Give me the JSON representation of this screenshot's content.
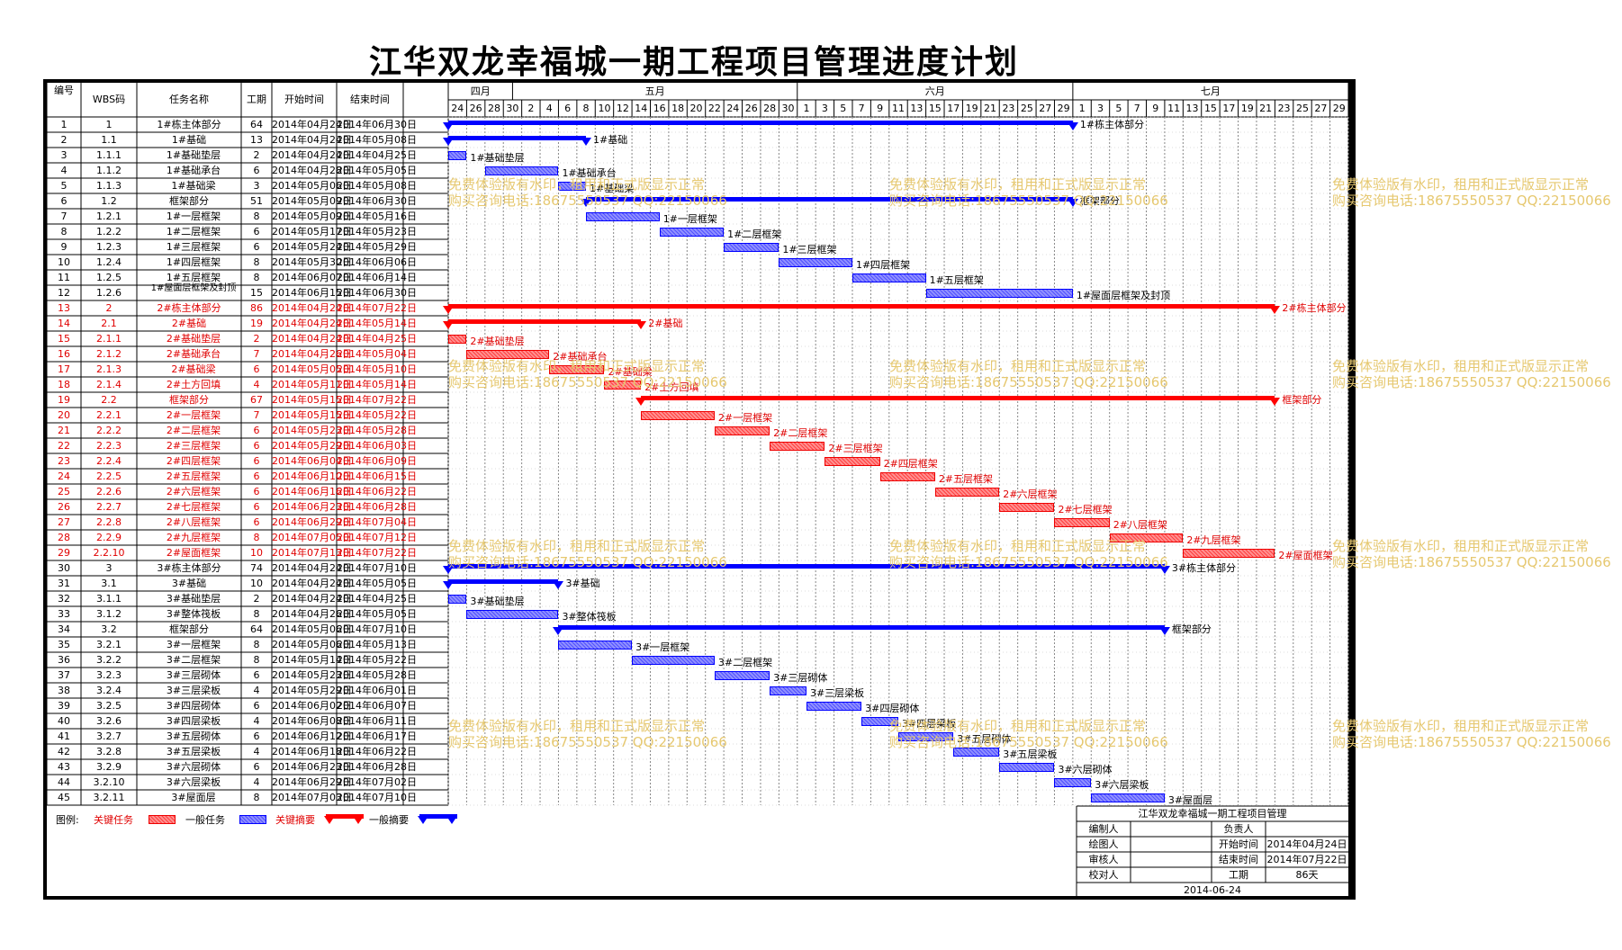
{
  "title": "江华双龙幸福城一期工程项目管理进度计划",
  "headers": {
    "no": "编号",
    "wbs": "WBS码",
    "name": "任务名称",
    "dur": "工期",
    "start": "开始时间",
    "end": "结束时间"
  },
  "months": [
    "四月",
    "五月",
    "六月",
    "七月"
  ],
  "days": [
    "24",
    "26",
    "28",
    "30",
    "2",
    "4",
    "6",
    "8",
    "10",
    "12",
    "14",
    "16",
    "18",
    "20",
    "22",
    "24",
    "26",
    "28",
    "30",
    "1",
    "3",
    "5",
    "7",
    "9",
    "11",
    "13",
    "15",
    "17",
    "19",
    "21",
    "23",
    "25",
    "27",
    "29",
    "1",
    "3",
    "5",
    "7",
    "9",
    "11",
    "13",
    "15",
    "17",
    "19",
    "21",
    "23",
    "25",
    "27",
    "29"
  ],
  "colors": {
    "critical": "#ff0000",
    "normal": "#0000ff",
    "watermark": "#e6c870"
  },
  "tasks": [
    {
      "no": "1",
      "wbs": "1",
      "name": "1#栋主体部分",
      "dur": "64",
      "start": "2014年04月24日",
      "end": "2014年06月30日",
      "type": "sum",
      "crit": false,
      "label": "1#栋主体部分"
    },
    {
      "no": "2",
      "wbs": "1.1",
      "name": "1#基础",
      "dur": "13",
      "start": "2014年04月24日",
      "end": "2014年05月08日",
      "type": "sum",
      "crit": false,
      "label": "1#基础"
    },
    {
      "no": "3",
      "wbs": "1.1.1",
      "name": "1#基础垫层",
      "dur": "2",
      "start": "2014年04月24日",
      "end": "2014年04月25日",
      "type": "task",
      "crit": false,
      "label": "1#基础垫层"
    },
    {
      "no": "4",
      "wbs": "1.1.2",
      "name": "1#基础承台",
      "dur": "6",
      "start": "2014年04月28日",
      "end": "2014年05月05日",
      "type": "task",
      "crit": false,
      "label": "1#基础承台"
    },
    {
      "no": "5",
      "wbs": "1.1.3",
      "name": "1#基础梁",
      "dur": "3",
      "start": "2014年05月06日",
      "end": "2014年05月08日",
      "type": "task",
      "crit": false,
      "label": "1#基础梁"
    },
    {
      "no": "6",
      "wbs": "1.2",
      "name": "框架部分",
      "dur": "51",
      "start": "2014年05月09日",
      "end": "2014年06月30日",
      "type": "sum",
      "crit": false,
      "label": "框架部分"
    },
    {
      "no": "7",
      "wbs": "1.2.1",
      "name": "1#一层框架",
      "dur": "8",
      "start": "2014年05月09日",
      "end": "2014年05月16日",
      "type": "task",
      "crit": false,
      "label": "1#一层框架"
    },
    {
      "no": "8",
      "wbs": "1.2.2",
      "name": "1#二层框架",
      "dur": "6",
      "start": "2014年05月17日",
      "end": "2014年05月23日",
      "type": "task",
      "crit": false,
      "label": "1#二层框架"
    },
    {
      "no": "9",
      "wbs": "1.2.3",
      "name": "1#三层框架",
      "dur": "6",
      "start": "2014年05月24日",
      "end": "2014年05月29日",
      "type": "task",
      "crit": false,
      "label": "1#三层框架"
    },
    {
      "no": "10",
      "wbs": "1.2.4",
      "name": "1#四层框架",
      "dur": "8",
      "start": "2014年05月30日",
      "end": "2014年06月06日",
      "type": "task",
      "crit": false,
      "label": "1#四层框架"
    },
    {
      "no": "11",
      "wbs": "1.2.5",
      "name": "1#五层框架",
      "dur": "8",
      "start": "2014年06月07日",
      "end": "2014年06月14日",
      "type": "task",
      "crit": false,
      "label": "1#五层框架"
    },
    {
      "no": "12",
      "wbs": "1.2.6",
      "name": "1#屋面层框架及封顶",
      "dur": "15",
      "start": "2014年06月15日",
      "end": "2014年06月30日",
      "type": "task",
      "crit": false,
      "label": "1#屋面层框架及封顶"
    },
    {
      "no": "13",
      "wbs": "2",
      "name": "2#栋主体部分",
      "dur": "86",
      "start": "2014年04月24日",
      "end": "2014年07月22日",
      "type": "sum",
      "crit": true,
      "label": "2#栋主体部分"
    },
    {
      "no": "14",
      "wbs": "2.1",
      "name": "2#基础",
      "dur": "19",
      "start": "2014年04月24日",
      "end": "2014年05月14日",
      "type": "sum",
      "crit": true,
      "label": "2#基础"
    },
    {
      "no": "15",
      "wbs": "2.1.1",
      "name": "2#基础垫层",
      "dur": "2",
      "start": "2014年04月24日",
      "end": "2014年04月25日",
      "type": "task",
      "crit": true,
      "label": "2#基础垫层"
    },
    {
      "no": "16",
      "wbs": "2.1.2",
      "name": "2#基础承台",
      "dur": "7",
      "start": "2014年04月26日",
      "end": "2014年05月04日",
      "type": "task",
      "crit": true,
      "label": "2#基础承台"
    },
    {
      "no": "17",
      "wbs": "2.1.3",
      "name": "2#基础梁",
      "dur": "6",
      "start": "2014年05月05日",
      "end": "2014年05月10日",
      "type": "task",
      "crit": true,
      "label": "2#基础梁"
    },
    {
      "no": "18",
      "wbs": "2.1.4",
      "name": "2#土方回填",
      "dur": "4",
      "start": "2014年05月11日",
      "end": "2014年05月14日",
      "type": "task",
      "crit": true,
      "label": "2#土方回填"
    },
    {
      "no": "19",
      "wbs": "2.2",
      "name": "框架部分",
      "dur": "67",
      "start": "2014年05月15日",
      "end": "2014年07月22日",
      "type": "sum",
      "crit": true,
      "label": "框架部分"
    },
    {
      "no": "20",
      "wbs": "2.2.1",
      "name": "2#一层框架",
      "dur": "7",
      "start": "2014年05月15日",
      "end": "2014年05月22日",
      "type": "task",
      "crit": true,
      "label": "2#一层框架"
    },
    {
      "no": "21",
      "wbs": "2.2.2",
      "name": "2#二层框架",
      "dur": "6",
      "start": "2014年05月23日",
      "end": "2014年05月28日",
      "type": "task",
      "crit": true,
      "label": "2#二层框架"
    },
    {
      "no": "22",
      "wbs": "2.2.3",
      "name": "2#三层框架",
      "dur": "6",
      "start": "2014年05月29日",
      "end": "2014年06月03日",
      "type": "task",
      "crit": true,
      "label": "2#三层框架"
    },
    {
      "no": "23",
      "wbs": "2.2.4",
      "name": "2#四层框架",
      "dur": "6",
      "start": "2014年06月04日",
      "end": "2014年06月09日",
      "type": "task",
      "crit": true,
      "label": "2#四层框架"
    },
    {
      "no": "24",
      "wbs": "2.2.5",
      "name": "2#五层框架",
      "dur": "6",
      "start": "2014年06月10日",
      "end": "2014年06月15日",
      "type": "task",
      "crit": true,
      "label": "2#五层框架"
    },
    {
      "no": "25",
      "wbs": "2.2.6",
      "name": "2#六层框架",
      "dur": "6",
      "start": "2014年06月16日",
      "end": "2014年06月22日",
      "type": "task",
      "crit": true,
      "label": "2#六层框架"
    },
    {
      "no": "26",
      "wbs": "2.2.7",
      "name": "2#七层框架",
      "dur": "6",
      "start": "2014年06月23日",
      "end": "2014年06月28日",
      "type": "task",
      "crit": true,
      "label": "2#七层框架"
    },
    {
      "no": "27",
      "wbs": "2.2.8",
      "name": "2#八层框架",
      "dur": "6",
      "start": "2014年06月29日",
      "end": "2014年07月04日",
      "type": "task",
      "crit": true,
      "label": "2#八层框架"
    },
    {
      "no": "28",
      "wbs": "2.2.9",
      "name": "2#九层框架",
      "dur": "8",
      "start": "2014年07月05日",
      "end": "2014年07月12日",
      "type": "task",
      "crit": true,
      "label": "2#九层框架"
    },
    {
      "no": "29",
      "wbs": "2.2.10",
      "name": "2#屋面框架",
      "dur": "10",
      "start": "2014年07月13日",
      "end": "2014年07月22日",
      "type": "task",
      "crit": true,
      "label": "2#屋面框架"
    },
    {
      "no": "30",
      "wbs": "3",
      "name": "3#栋主体部分",
      "dur": "74",
      "start": "2014年04月24日",
      "end": "2014年07月10日",
      "type": "sum",
      "crit": false,
      "label": "3#栋主体部分"
    },
    {
      "no": "31",
      "wbs": "3.1",
      "name": "3#基础",
      "dur": "10",
      "start": "2014年04月24日",
      "end": "2014年05月05日",
      "type": "sum",
      "crit": false,
      "label": "3#基础"
    },
    {
      "no": "32",
      "wbs": "3.1.1",
      "name": "3#基础垫层",
      "dur": "2",
      "start": "2014年04月24日",
      "end": "2014年04月25日",
      "type": "task",
      "crit": false,
      "label": "3#基础垫层"
    },
    {
      "no": "33",
      "wbs": "3.1.2",
      "name": "3#整体筏板",
      "dur": "8",
      "start": "2014年04月26日",
      "end": "2014年05月05日",
      "type": "task",
      "crit": false,
      "label": "3#整体筏板"
    },
    {
      "no": "34",
      "wbs": "3.2",
      "name": "框架部分",
      "dur": "64",
      "start": "2014年05月06日",
      "end": "2014年07月10日",
      "type": "sum",
      "crit": false,
      "label": "框架部分"
    },
    {
      "no": "35",
      "wbs": "3.2.1",
      "name": "3#一层框架",
      "dur": "8",
      "start": "2014年05月06日",
      "end": "2014年05月13日",
      "type": "task",
      "crit": false,
      "label": "3#一层框架"
    },
    {
      "no": "36",
      "wbs": "3.2.2",
      "name": "3#二层框架",
      "dur": "8",
      "start": "2014年05月14日",
      "end": "2014年05月22日",
      "type": "task",
      "crit": false,
      "label": "3#二层框架"
    },
    {
      "no": "37",
      "wbs": "3.2.3",
      "name": "3#三层砌体",
      "dur": "6",
      "start": "2014年05月23日",
      "end": "2014年05月28日",
      "type": "task",
      "crit": false,
      "label": "3#三层砌体"
    },
    {
      "no": "38",
      "wbs": "3.2.4",
      "name": "3#三层梁板",
      "dur": "4",
      "start": "2014年05月29日",
      "end": "2014年06月01日",
      "type": "task",
      "crit": false,
      "label": "3#三层梁板"
    },
    {
      "no": "39",
      "wbs": "3.2.5",
      "name": "3#四层砌体",
      "dur": "6",
      "start": "2014年06月02日",
      "end": "2014年06月07日",
      "type": "task",
      "crit": false,
      "label": "3#四层砌体"
    },
    {
      "no": "40",
      "wbs": "3.2.6",
      "name": "3#四层梁板",
      "dur": "4",
      "start": "2014年06月08日",
      "end": "2014年06月11日",
      "type": "task",
      "crit": false,
      "label": "3#四层梁板"
    },
    {
      "no": "41",
      "wbs": "3.2.7",
      "name": "3#五层砌体",
      "dur": "6",
      "start": "2014年06月12日",
      "end": "2014年06月17日",
      "type": "task",
      "crit": false,
      "label": "3#五层砌体"
    },
    {
      "no": "42",
      "wbs": "3.2.8",
      "name": "3#五层梁板",
      "dur": "4",
      "start": "2014年06月18日",
      "end": "2014年06月22日",
      "type": "task",
      "crit": false,
      "label": "3#五层梁板"
    },
    {
      "no": "43",
      "wbs": "3.2.9",
      "name": "3#六层砌体",
      "dur": "6",
      "start": "2014年06月23日",
      "end": "2014年06月28日",
      "type": "task",
      "crit": false,
      "label": "3#六层砌体"
    },
    {
      "no": "44",
      "wbs": "3.2.10",
      "name": "3#六层梁板",
      "dur": "4",
      "start": "2014年06月29日",
      "end": "2014年07月02日",
      "type": "task",
      "crit": false,
      "label": "3#六层梁板"
    },
    {
      "no": "45",
      "wbs": "3.2.11",
      "name": "3#屋面层",
      "dur": "8",
      "start": "2014年07月03日",
      "end": "2014年07月10日",
      "type": "task",
      "crit": false,
      "label": "3#屋面层"
    }
  ],
  "legend": {
    "prefix": "图例:",
    "critical_task": "关键任务",
    "normal_task": "一般任务",
    "critical_summary": "关键摘要",
    "normal_summary": "一般摘要"
  },
  "watermark": {
    "line1": "免费体验版有水印，租用和正式版显示正常",
    "line2": "购买咨询电话:18675550537 QQ:22150066"
  },
  "signoff": {
    "project": "江华双龙幸福城一期工程项目管理",
    "editor": "编制人",
    "owner": "负责人",
    "drawer": "绘图人",
    "start_label": "开始时间",
    "start_value": "2014年04月24日",
    "reviewer": "审核人",
    "end_label": "结束时间",
    "end_value": "2014年07月22日",
    "checker": "校对人",
    "dur_label": "工期",
    "dur_value": "86天",
    "date": "2014-06-24"
  }
}
